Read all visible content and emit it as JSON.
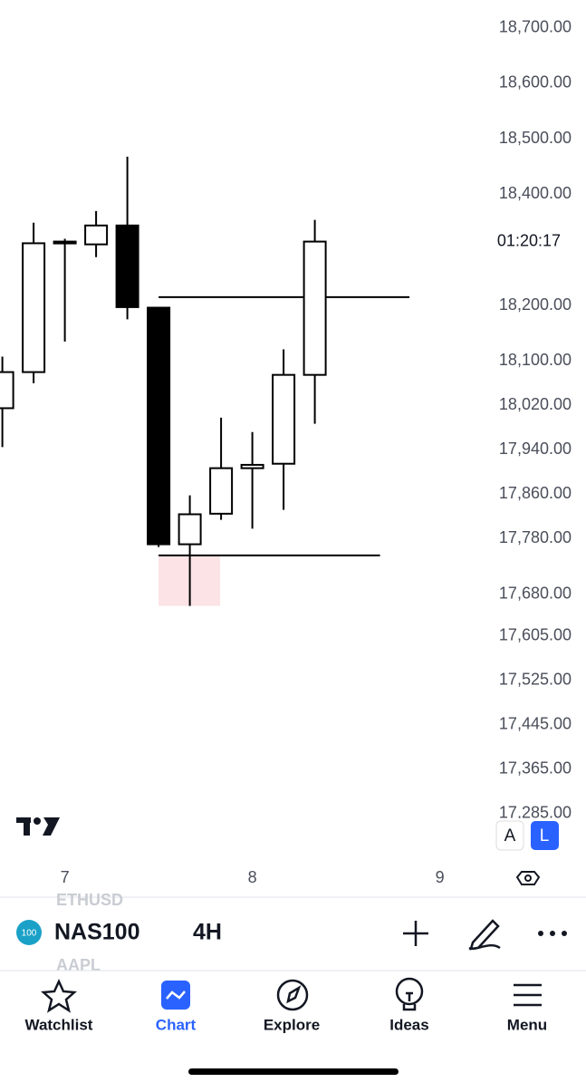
{
  "chart_data": {
    "type": "candlestick",
    "categories": [
      null,
      null,
      "7",
      null,
      null,
      null,
      null,
      null,
      "8",
      null,
      null,
      null,
      null,
      null,
      "9"
    ],
    "open": [
      18015,
      18080,
      18312,
      18310,
      18344,
      18196,
      17770,
      17825,
      17907,
      17915,
      18075,
      null,
      null,
      null,
      null
    ],
    "high": [
      18108,
      18349,
      18320,
      18370,
      18468,
      18197,
      17858,
      17998,
      17972,
      18121,
      18354,
      null,
      null,
      null,
      null
    ],
    "low": [
      17945,
      18060,
      18135,
      18287,
      18175,
      17765,
      17659,
      17814,
      17798,
      17832,
      17987,
      null,
      null,
      null,
      null
    ],
    "close": [
      18080,
      18312,
      18315,
      18344,
      18197,
      17770,
      17824,
      17907,
      17913,
      18075,
      18315,
      null,
      null,
      null,
      null
    ],
    "up_color": "#ffffff",
    "down_color": "#000000",
    "levels": [
      18215,
      17750
    ],
    "zone": [
      17659,
      17750
    ],
    "zone_color": "#fbe3e6",
    "countdown": "01:20:17",
    "ylim": [
      17270,
      18750
    ],
    "yticks": [
      {
        "value": 18700,
        "label": "18,700.00"
      },
      {
        "value": 18600,
        "label": "18,600.00"
      },
      {
        "value": 18500,
        "label": "18,500.00"
      },
      {
        "value": 18400,
        "label": "18,400.00"
      },
      {
        "value": 18200,
        "label": "18,200.00"
      },
      {
        "value": 18100,
        "label": "18,100.00"
      },
      {
        "value": 18020,
        "label": "18,020.00"
      },
      {
        "value": 17940,
        "label": "17,940.00"
      },
      {
        "value": 17860,
        "label": "17,860.00"
      },
      {
        "value": 17780,
        "label": "17,780.00"
      },
      {
        "value": 17680,
        "label": "17,680.00"
      },
      {
        "value": 17605,
        "label": "17,605.00"
      },
      {
        "value": 17525,
        "label": "17,525.00"
      },
      {
        "value": 17445,
        "label": "17,445.00"
      },
      {
        "value": 17365,
        "label": "17,365.00"
      },
      {
        "value": 17285,
        "label": "17,285.00"
      }
    ]
  },
  "ui": {
    "scale_buttons": [
      "A",
      "L"
    ],
    "symbol_badge": "100",
    "symbol": "NAS100",
    "interval": "4H",
    "faded_symbols": [
      "ETHUSD",
      "AAPL"
    ],
    "tabs": [
      "Watchlist",
      "Chart",
      "Explore",
      "Ideas",
      "Menu"
    ]
  }
}
